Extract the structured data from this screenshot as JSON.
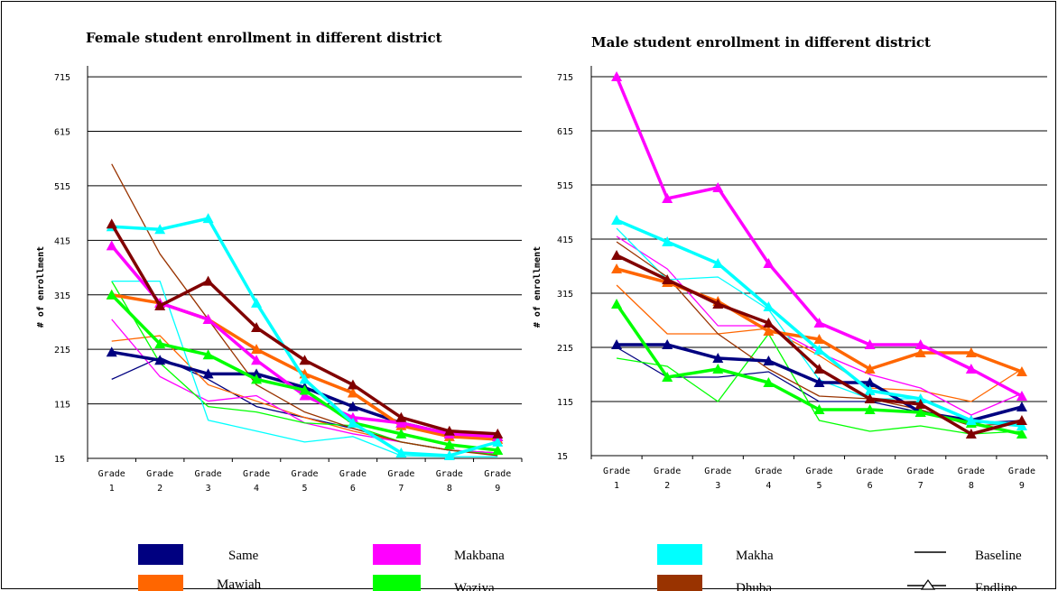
{
  "chart_data": [
    {
      "type": "line",
      "title": "Female student enrollment in different district",
      "ylabel": "# of enrollment",
      "xlabel": "",
      "categories": [
        "Grade 1",
        "Grade 2",
        "Grade 3",
        "Grade 4",
        "Grade 5",
        "Grade 6",
        "Grade 7",
        "Grade 8",
        "Grade 9"
      ],
      "category_lines": [
        [
          "Grade",
          "1"
        ],
        [
          "Grade",
          "2"
        ],
        [
          "Grade",
          "3"
        ],
        [
          "Grade",
          "4"
        ],
        [
          "Grade",
          "5"
        ],
        [
          "Grade",
          "6"
        ],
        [
          "Grade",
          "7"
        ],
        [
          "Grade",
          "8"
        ],
        [
          "Grade",
          "9"
        ]
      ],
      "yticks": [
        15,
        115,
        215,
        315,
        415,
        515,
        615,
        715
      ],
      "ylim": [
        15,
        735
      ],
      "grid": true,
      "series": [
        {
          "name": "Same",
          "kind": "Baseline",
          "color": "#000080",
          "values": [
            160,
            200,
            160,
            110,
            90,
            70,
            45,
            30,
            25
          ]
        },
        {
          "name": "Mawiah",
          "kind": "Baseline",
          "color": "#FF6600",
          "values": [
            230,
            240,
            150,
            120,
            90,
            65,
            45,
            30,
            25
          ]
        },
        {
          "name": "Makbana",
          "kind": "Baseline",
          "color": "#FF00FF",
          "values": [
            270,
            165,
            120,
            130,
            80,
            60,
            45,
            30,
            25
          ]
        },
        {
          "name": "Waziya",
          "kind": "Baseline",
          "color": "#00FF00",
          "values": [
            340,
            190,
            110,
            100,
            80,
            75,
            45,
            30,
            22
          ]
        },
        {
          "name": "Makha",
          "kind": "Baseline",
          "color": "#00FFFF",
          "values": [
            340,
            340,
            85,
            65,
            45,
            55,
            20,
            18,
            18
          ]
        },
        {
          "name": "Dhuba",
          "kind": "Baseline",
          "color": "#993300",
          "values": [
            555,
            390,
            270,
            150,
            100,
            70,
            45,
            30,
            20
          ]
        },
        {
          "name": "Same",
          "kind": "Endline",
          "color": "#000080",
          "values": [
            210,
            195,
            170,
            170,
            145,
            110,
            80,
            60,
            55
          ]
        },
        {
          "name": "Mawiah",
          "kind": "Endline",
          "color": "#FF6600",
          "values": [
            315,
            300,
            270,
            215,
            170,
            135,
            75,
            55,
            50
          ]
        },
        {
          "name": "Makbana",
          "kind": "Endline",
          "color": "#FF00FF",
          "values": [
            405,
            300,
            270,
            195,
            130,
            90,
            80,
            60,
            55
          ]
        },
        {
          "name": "Waziya",
          "kind": "Endline",
          "color": "#00FF00",
          "values": [
            315,
            225,
            205,
            160,
            140,
            80,
            60,
            40,
            30
          ]
        },
        {
          "name": "Makha",
          "kind": "Endline",
          "color": "#00FFFF",
          "values": [
            440,
            435,
            455,
            300,
            160,
            80,
            25,
            20,
            45
          ]
        },
        {
          "name": "Dhuba",
          "kind": "Endline",
          "color": "#800000",
          "values": [
            445,
            295,
            340,
            255,
            195,
            150,
            90,
            65,
            60
          ]
        }
      ]
    },
    {
      "type": "line",
      "title": "Male student enrollment in different district",
      "ylabel": "# of enrollment",
      "xlabel": "",
      "categories": [
        "Grade 1",
        "Grade 2",
        "Grade 3",
        "Grade 4",
        "Grade 5",
        "Grade 6",
        "Grade 7",
        "Grade 8",
        "Grade 9"
      ],
      "category_lines": [
        [
          "Grade",
          "1"
        ],
        [
          "Grade",
          "2"
        ],
        [
          "Grade",
          "3"
        ],
        [
          "Grade",
          "4"
        ],
        [
          "Grade",
          "5"
        ],
        [
          "Grade",
          "6"
        ],
        [
          "Grade",
          "7"
        ],
        [
          "Grade",
          "8"
        ],
        [
          "Grade",
          "9"
        ]
      ],
      "yticks": [
        15,
        115,
        215,
        315,
        415,
        515,
        615,
        715
      ],
      "ylim": [
        15,
        735
      ],
      "grid": true,
      "series": [
        {
          "name": "Same",
          "kind": "Baseline",
          "color": "#000080",
          "values": [
            215,
            160,
            160,
            170,
            115,
            115,
            95,
            75,
            80
          ]
        },
        {
          "name": "Mawiah",
          "kind": "Baseline",
          "color": "#FF6600",
          "values": [
            330,
            240,
            240,
            250,
            200,
            140,
            135,
            115,
            175
          ]
        },
        {
          "name": "Makbana",
          "kind": "Baseline",
          "color": "#FF00FF",
          "values": [
            420,
            360,
            255,
            255,
            205,
            165,
            140,
            90,
            130
          ]
        },
        {
          "name": "Waziya",
          "kind": "Baseline",
          "color": "#00FF00",
          "values": [
            195,
            180,
            115,
            240,
            80,
            60,
            70,
            55,
            60
          ]
        },
        {
          "name": "Makha",
          "kind": "Baseline",
          "color": "#00FFFF",
          "values": [
            435,
            340,
            345,
            285,
            155,
            120,
            120,
            80,
            75
          ]
        },
        {
          "name": "Dhuba",
          "kind": "Baseline",
          "color": "#993300",
          "values": [
            410,
            345,
            240,
            175,
            125,
            120,
            100,
            70,
            75
          ]
        },
        {
          "name": "Same",
          "kind": "Endline",
          "color": "#000080",
          "values": [
            220,
            220,
            195,
            190,
            150,
            150,
            95,
            80,
            105
          ]
        },
        {
          "name": "Mawiah",
          "kind": "Endline",
          "color": "#FF6600",
          "values": [
            360,
            335,
            300,
            245,
            230,
            175,
            205,
            205,
            170
          ]
        },
        {
          "name": "Makbana",
          "kind": "Endline",
          "color": "#FF00FF",
          "values": [
            715,
            490,
            510,
            370,
            260,
            220,
            220,
            175,
            125
          ]
        },
        {
          "name": "Waziya",
          "kind": "Endline",
          "color": "#00FF00",
          "values": [
            295,
            160,
            175,
            150,
            100,
            100,
            95,
            75,
            55
          ]
        },
        {
          "name": "Makha",
          "kind": "Endline",
          "color": "#00FFFF",
          "values": [
            450,
            410,
            370,
            290,
            210,
            135,
            120,
            80,
            70
          ]
        },
        {
          "name": "Dhuba",
          "kind": "Endline",
          "color": "#800000",
          "values": [
            385,
            340,
            295,
            260,
            175,
            120,
            110,
            55,
            80
          ]
        }
      ]
    }
  ],
  "legend": {
    "items": [
      {
        "label": "Same",
        "color": "#000080"
      },
      {
        "label": "Mawiah",
        "color": "#FF6600"
      },
      {
        "label": "Makbana",
        "color": "#FF00FF"
      },
      {
        "label": "Waziya",
        "color": "#00FF00"
      },
      {
        "label": "Makha",
        "color": "#00FFFF"
      },
      {
        "label": "Dhuba",
        "color": "#993300"
      }
    ],
    "baseline_label": "Baseline",
    "endline_label": "Endline"
  }
}
